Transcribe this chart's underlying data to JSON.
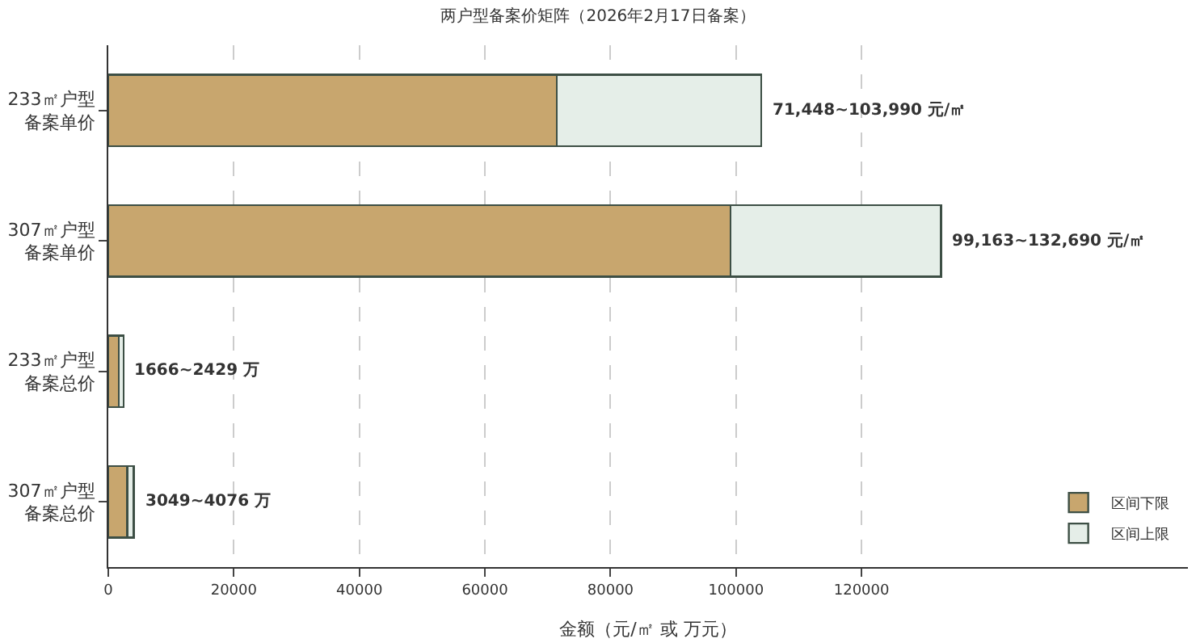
{
  "chart_data": {
    "type": "bar",
    "orientation": "horizontal",
    "stacked": true,
    "title": "两户型备案价矩阵（2026年2月17日备案）",
    "xlabel": "金额（元/㎡ 或 万元）",
    "categories": [
      "233㎡户型备案单价",
      "307㎡户型备案单价",
      "233㎡户型备案总价",
      "307㎡户型备案总价"
    ],
    "series": [
      {
        "name": "区间下限",
        "color": "#c8a66e",
        "values": [
          71448,
          99163,
          1666,
          3049
        ]
      },
      {
        "name": "区间上限",
        "color": "#e5eee8",
        "values": [
          32542,
          33527,
          763,
          1027
        ]
      }
    ],
    "annotations": [
      {
        "text": "71,448~103,990 元/㎡",
        "x": 103990,
        "y": "233㎡户型备案单价"
      },
      {
        "text": "99,163~132,690 元/㎡",
        "x": 132690,
        "y": "307㎡户型备案单价"
      },
      {
        "text": "1666~2429 万",
        "x": 2429,
        "y": "233㎡户型备案总价"
      },
      {
        "text": "3049~4076 万",
        "x": 4076,
        "y": "307㎡户型备案总价"
      }
    ],
    "xlim": [
      0,
      172000
    ],
    "xticks": [
      0,
      20000,
      40000,
      60000,
      80000,
      100000,
      120000
    ],
    "grid": "x",
    "legend": "bottom right"
  }
}
